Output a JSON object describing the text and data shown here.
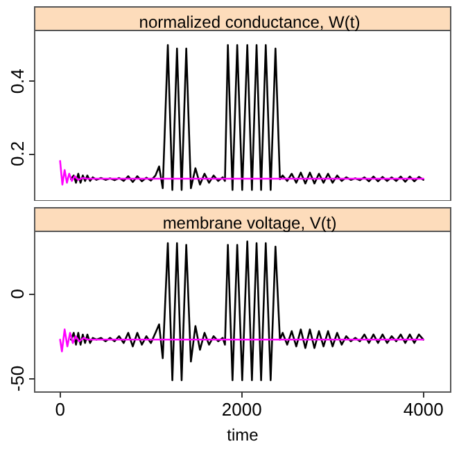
{
  "chart_data": [
    {
      "type": "line",
      "title": "normalized conductance, W(t)",
      "xlim": [
        -280,
        4300
      ],
      "ylim": [
        0.07,
        0.54
      ],
      "yticks": [
        0.2,
        0.4
      ],
      "tick_labels": "y",
      "grid": false,
      "marker": "none",
      "line_style": "solid",
      "series": [
        {
          "color": "#000000",
          "x": [
            120,
            150,
            175,
            200,
            225,
            250,
            275,
            300,
            330,
            360,
            400,
            450,
            500,
            550,
            600,
            650,
            700,
            750,
            800,
            850,
            900,
            950,
            1000,
            1050,
            1090,
            1130,
            1186,
            1236,
            1287,
            1338,
            1389,
            1440,
            1490,
            1540,
            1590,
            1640,
            1690,
            1740,
            1790,
            1815,
            1847,
            1898,
            1950,
            2005,
            2061,
            2112,
            2163,
            2213,
            2264,
            2318,
            2371,
            2420,
            2450,
            2500,
            2550,
            2600,
            2650,
            2700,
            2750,
            2800,
            2850,
            2900,
            2950,
            3000,
            3050,
            3100,
            3150,
            3200,
            3250,
            3300,
            3350,
            3400,
            3450,
            3500,
            3550,
            3600,
            3650,
            3700,
            3750,
            3800,
            3850,
            3900,
            3950,
            4000
          ],
          "values": [
            0.13,
            0.14,
            0.12,
            0.145,
            0.12,
            0.14,
            0.125,
            0.14,
            0.125,
            0.135,
            0.128,
            0.133,
            0.128,
            0.132,
            0.127,
            0.133,
            0.125,
            0.138,
            0.122,
            0.138,
            0.124,
            0.134,
            0.126,
            0.14,
            0.165,
            0.105,
            0.5,
            0.1,
            0.49,
            0.1,
            0.49,
            0.105,
            0.16,
            0.115,
            0.145,
            0.12,
            0.14,
            0.125,
            0.135,
            0.125,
            0.5,
            0.1,
            0.5,
            0.1,
            0.5,
            0.1,
            0.5,
            0.1,
            0.5,
            0.1,
            0.49,
            0.13,
            0.14,
            0.125,
            0.145,
            0.12,
            0.148,
            0.118,
            0.148,
            0.118,
            0.145,
            0.12,
            0.145,
            0.12,
            0.14,
            0.125,
            0.135,
            0.128,
            0.132,
            0.127,
            0.135,
            0.124,
            0.137,
            0.124,
            0.136,
            0.125,
            0.135,
            0.125,
            0.137,
            0.123,
            0.137,
            0.124,
            0.136,
            0.128
          ]
        },
        {
          "color": "#ff00ff",
          "x": [
            0,
            25,
            50,
            75,
            100,
            130,
            160,
            200,
            250,
            300,
            4000
          ],
          "values": [
            0.18,
            0.115,
            0.155,
            0.12,
            0.145,
            0.125,
            0.138,
            0.128,
            0.133,
            0.131,
            0.131
          ]
        }
      ]
    },
    {
      "type": "line",
      "title": "membrane voltage, V(t)",
      "xlabel": "time",
      "xlim": [
        -280,
        4300
      ],
      "xticks": [
        0,
        2000,
        4000
      ],
      "ylim": [
        -58,
        37
      ],
      "yticks": [
        -50,
        0
      ],
      "grid": false,
      "marker": "none",
      "line_style": "solid",
      "series": [
        {
          "color": "#000000",
          "x": [
            120,
            150,
            175,
            200,
            225,
            250,
            275,
            300,
            330,
            360,
            400,
            450,
            500,
            550,
            600,
            650,
            700,
            750,
            800,
            850,
            900,
            950,
            1000,
            1050,
            1090,
            1130,
            1186,
            1236,
            1287,
            1338,
            1389,
            1440,
            1490,
            1540,
            1590,
            1640,
            1690,
            1740,
            1790,
            1815,
            1847,
            1898,
            1950,
            2005,
            2061,
            2112,
            2163,
            2213,
            2264,
            2318,
            2371,
            2420,
            2450,
            2500,
            2550,
            2600,
            2650,
            2700,
            2750,
            2800,
            2850,
            2900,
            2950,
            3000,
            3050,
            3100,
            3150,
            3200,
            3250,
            3300,
            3350,
            3400,
            3450,
            3500,
            3550,
            3600,
            3650,
            3700,
            3750,
            3800,
            3850,
            3900,
            3950,
            4000
          ],
          "values": [
            -27,
            -23,
            -30,
            -23,
            -30,
            -24,
            -29,
            -24,
            -29,
            -26,
            -27,
            -26,
            -28,
            -26,
            -28,
            -25,
            -29,
            -23,
            -31,
            -23,
            -30,
            -25,
            -29,
            -23,
            -18,
            -38,
            30,
            -51,
            30,
            -51,
            29,
            -40,
            -19,
            -33,
            -23,
            -30,
            -25,
            -28,
            -26,
            -30,
            29,
            -51,
            29,
            -51,
            31,
            -51,
            30,
            -51,
            30,
            -51,
            28,
            -27,
            -23,
            -30,
            -22,
            -31,
            -21,
            -32,
            -21,
            -32,
            -22,
            -31,
            -22,
            -31,
            -23,
            -30,
            -25,
            -28,
            -26,
            -28,
            -24,
            -29,
            -24,
            -29,
            -24,
            -29,
            -25,
            -28,
            -24,
            -29,
            -24,
            -29,
            -24,
            -27
          ]
        },
        {
          "color": "#ff00ff",
          "x": [
            0,
            20,
            50,
            80,
            110,
            140,
            170,
            210,
            260,
            300,
            4000
          ],
          "values": [
            -27,
            -34,
            -21,
            -31,
            -23,
            -29,
            -25,
            -28,
            -26,
            -27,
            -27
          ]
        }
      ]
    }
  ]
}
